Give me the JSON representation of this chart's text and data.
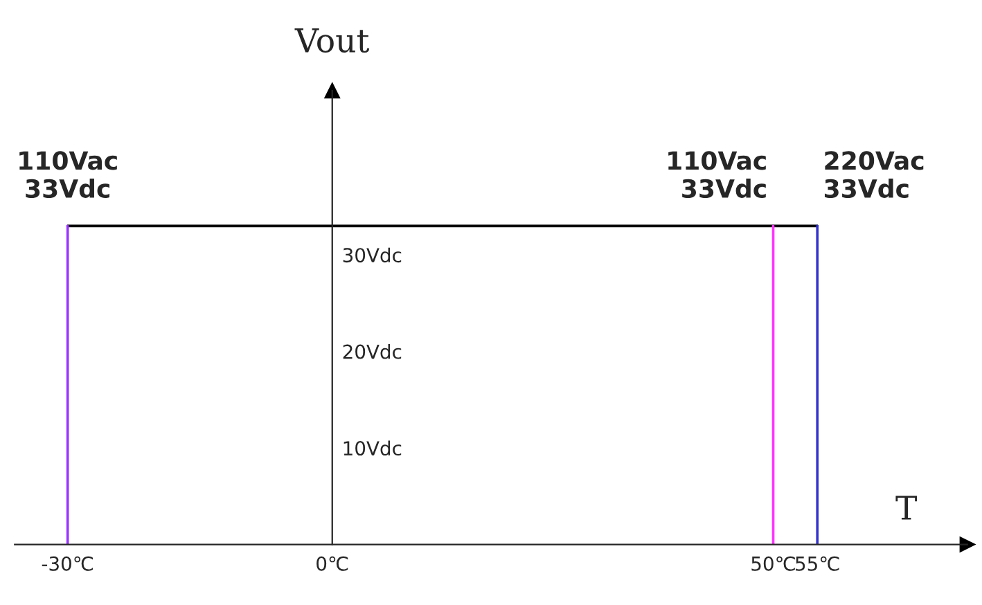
{
  "chart_data": {
    "type": "line",
    "xlabel": "T",
    "ylabel": "Vout",
    "xlim": [
      -36,
      72
    ],
    "ylim": [
      0,
      47
    ],
    "xticks": [
      {
        "value": -30,
        "label": "-30℃"
      },
      {
        "value": 0,
        "label": "0℃"
      },
      {
        "value": 50,
        "label": "50℃"
      },
      {
        "value": 55,
        "label": "55℃"
      }
    ],
    "yticks": [
      {
        "value": 10,
        "label": "10Vdc"
      },
      {
        "value": 20,
        "label": "20Vdc"
      },
      {
        "value": 30,
        "label": "30Vdc"
      }
    ],
    "series": [
      {
        "x": [
          -30,
          55
        ],
        "values": [
          33,
          33
        ],
        "color": "#000000"
      },
      {
        "x": [
          -30,
          -30
        ],
        "values": [
          0,
          33
        ],
        "color": "#9933ff"
      },
      {
        "x": [
          50,
          50
        ],
        "values": [
          0,
          33
        ],
        "color": "#ff33ff"
      },
      {
        "x": [
          55,
          55
        ],
        "values": [
          0,
          33
        ],
        "color": "#3333cc"
      }
    ],
    "annotations": [
      {
        "text": "110Vac\n33Vdc",
        "x": -30,
        "y": 33
      },
      {
        "text": "110Vac\n33Vdc",
        "x": 50,
        "y": 33
      },
      {
        "text": "220Vac\n33Vdc",
        "x": 55,
        "y": 33
      }
    ],
    "grid": false,
    "legend": false,
    "marker": "none",
    "line_style": "solid"
  }
}
